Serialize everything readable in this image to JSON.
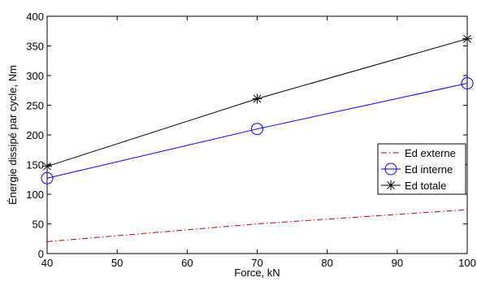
{
  "chart_data": {
    "type": "line",
    "title": "",
    "xlabel": "Force, kN",
    "ylabel": "Énergie dissipé par cycle, Nm",
    "xlim": [
      40,
      100
    ],
    "ylim": [
      0,
      400
    ],
    "xticks": [
      40,
      50,
      60,
      70,
      80,
      90,
      100
    ],
    "yticks": [
      0,
      50,
      100,
      150,
      200,
      250,
      300,
      350,
      400
    ],
    "grid": false,
    "legend_position": "right",
    "series": [
      {
        "name": "Ed externe",
        "x": [
          40,
          70,
          100
        ],
        "y": [
          20,
          50,
          74
        ],
        "color": "#cc0000",
        "line_style": "dash-dot",
        "marker": "none"
      },
      {
        "name": "Ed interne",
        "x": [
          40,
          70,
          100
        ],
        "y": [
          127,
          210,
          287
        ],
        "color": "#0000ff",
        "line_style": "solid",
        "marker": "circle"
      },
      {
        "name": "Ed totale",
        "x": [
          40,
          70,
          100
        ],
        "y": [
          147,
          261,
          362
        ],
        "color": "#000000",
        "line_style": "solid",
        "marker": "asterisk"
      }
    ]
  }
}
